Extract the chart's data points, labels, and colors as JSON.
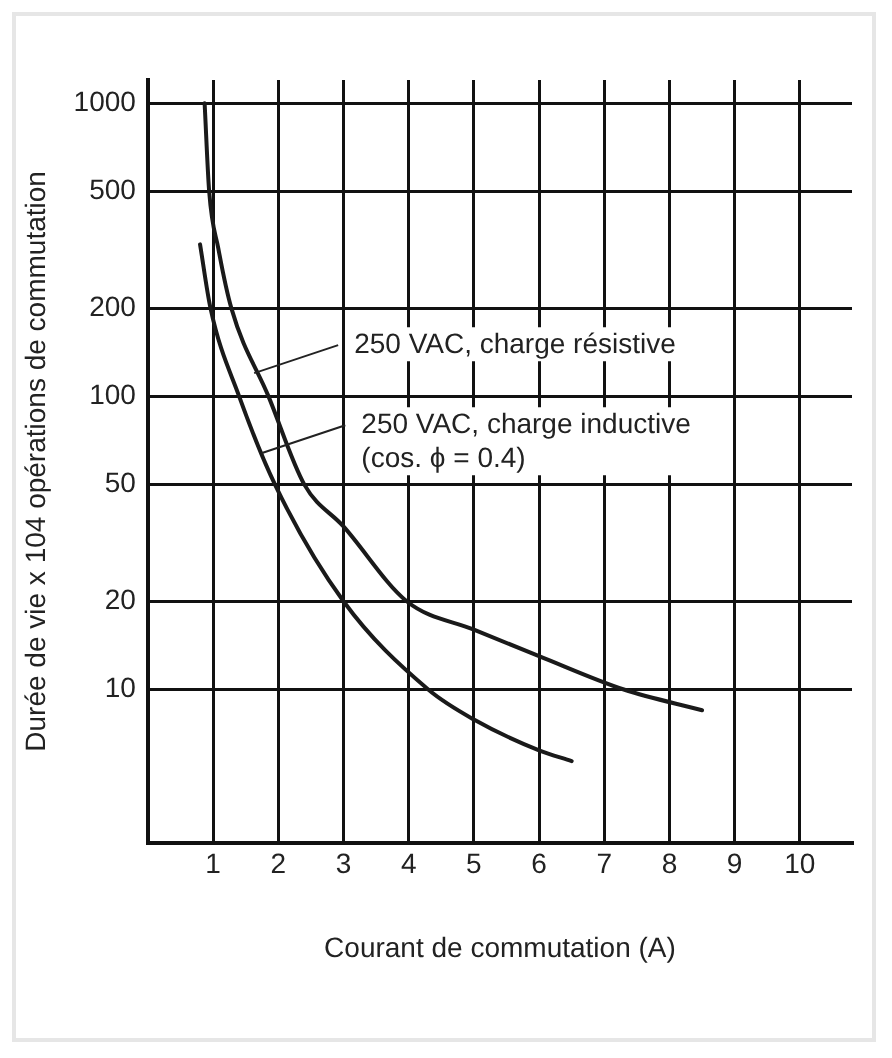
{
  "chart_data": {
    "type": "line",
    "xlabel": "Courant de commutation (A)",
    "ylabel": "Durée de vie x 104 opérations de commutation",
    "xlim": [
      0,
      10.8
    ],
    "xticks": [
      1,
      2,
      3,
      4,
      5,
      6,
      7,
      8,
      9,
      10
    ],
    "ylim": [
      3,
      1200
    ],
    "yticks": [
      10,
      20,
      50,
      100,
      200,
      500,
      1000
    ],
    "log": "y",
    "grid": true,
    "legend": false,
    "marker": "none",
    "line_style": "solid",
    "series": [
      {
        "color": "#1a1a1a",
        "x": [
          0.87,
          0.94,
          1.08,
          1.28,
          1.85,
          2.4,
          3,
          3.97,
          5,
          6,
          7.3,
          8.5
        ],
        "values": [
          1000,
          500,
          320,
          200,
          100,
          50,
          36,
          20,
          16,
          13,
          10,
          8.5
        ]
      },
      {
        "color": "#1a1a1a",
        "x": [
          0.8,
          0.96,
          1.4,
          1.95,
          3,
          4.3,
          5,
          6,
          6.5
        ],
        "values": [
          330,
          200,
          100,
          50,
          20,
          10,
          7.9,
          6.2,
          5.7
        ]
      }
    ],
    "annotations": [
      {
        "text": "250 VAC, charge résistive",
        "x": 1.63,
        "y": 120
      },
      {
        "text": "250 VAC, charge inductive\n(cos. ϕ = 0.4)",
        "x": 1.74,
        "y": 64
      }
    ]
  }
}
